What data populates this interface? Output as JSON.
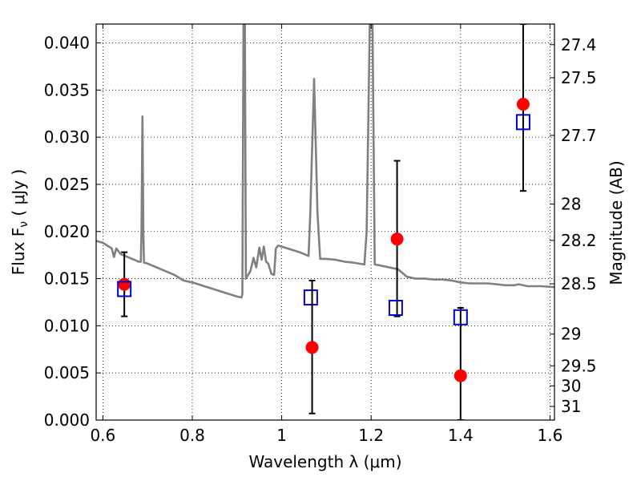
{
  "chart_data": {
    "type": "scatter",
    "xlabel": "Wavelength  λ (μm)",
    "ylabel": "Flux  F",
    "ylabel_sub": "ν",
    "ylabel_unit": "  ( μJy )",
    "y2label": "Magnitude (AB)",
    "xlim": [
      0.585,
      1.61
    ],
    "ylim": [
      0.0,
      0.042
    ],
    "grid": true,
    "x_ticks": [
      {
        "value": 0.6,
        "label": "0.6"
      },
      {
        "value": 0.8,
        "label": "0.8"
      },
      {
        "value": 1.0,
        "label": "1"
      },
      {
        "value": 1.2,
        "label": "1.2"
      },
      {
        "value": 1.4,
        "label": "1.4"
      },
      {
        "value": 1.6,
        "label": "1.6"
      }
    ],
    "y_ticks": [
      {
        "value": 0.0,
        "label": "0.000"
      },
      {
        "value": 0.005,
        "label": "0.005"
      },
      {
        "value": 0.01,
        "label": "0.010"
      },
      {
        "value": 0.015,
        "label": "0.015"
      },
      {
        "value": 0.02,
        "label": "0.020"
      },
      {
        "value": 0.025,
        "label": "0.025"
      },
      {
        "value": 0.03,
        "label": "0.030"
      },
      {
        "value": 0.035,
        "label": "0.035"
      },
      {
        "value": 0.04,
        "label": "0.040"
      }
    ],
    "y2_ticks": [
      {
        "value": 27.4,
        "label": "27.4"
      },
      {
        "value": 27.5,
        "label": "27.5"
      },
      {
        "value": 27.7,
        "label": "27.7"
      },
      {
        "value": 28.0,
        "label": "28"
      },
      {
        "value": 28.2,
        "label": "28.2"
      },
      {
        "value": 28.5,
        "label": "28.5"
      },
      {
        "value": 29.0,
        "label": "29"
      },
      {
        "value": 29.5,
        "label": "29.5"
      },
      {
        "value": 30.0,
        "label": "30"
      },
      {
        "value": 31.0,
        "label": "31"
      }
    ],
    "model_spectrum": {
      "color": "#808080",
      "points": [
        [
          0.585,
          0.019
        ],
        [
          0.6,
          0.0188
        ],
        [
          0.61,
          0.0185
        ],
        [
          0.62,
          0.0182
        ],
        [
          0.625,
          0.0173
        ],
        [
          0.63,
          0.0182
        ],
        [
          0.64,
          0.0176
        ],
        [
          0.65,
          0.0174
        ],
        [
          0.66,
          0.0172
        ],
        [
          0.67,
          0.017
        ],
        [
          0.68,
          0.0168
        ],
        [
          0.685,
          0.0168
        ],
        [
          0.6865,
          0.02
        ],
        [
          0.6885,
          0.0322
        ],
        [
          0.6905,
          0.02
        ],
        [
          0.692,
          0.0167
        ],
        [
          0.7,
          0.0166
        ],
        [
          0.72,
          0.0162
        ],
        [
          0.74,
          0.0158
        ],
        [
          0.76,
          0.0154
        ],
        [
          0.78,
          0.0148
        ],
        [
          0.8,
          0.0146
        ],
        [
          0.82,
          0.0143
        ],
        [
          0.84,
          0.014
        ],
        [
          0.86,
          0.0137
        ],
        [
          0.88,
          0.0134
        ],
        [
          0.9,
          0.0131
        ],
        [
          0.91,
          0.013
        ],
        [
          0.912,
          0.0134
        ],
        [
          0.9145,
          0.042
        ],
        [
          0.9175,
          0.042
        ],
        [
          0.92,
          0.015
        ],
        [
          0.93,
          0.0158
        ],
        [
          0.937,
          0.0172
        ],
        [
          0.943,
          0.0162
        ],
        [
          0.95,
          0.0183
        ],
        [
          0.955,
          0.017
        ],
        [
          0.96,
          0.0184
        ],
        [
          0.965,
          0.0168
        ],
        [
          0.97,
          0.0166
        ],
        [
          0.977,
          0.0155
        ],
        [
          0.983,
          0.0154
        ],
        [
          0.987,
          0.0182
        ],
        [
          0.992,
          0.0185
        ],
        [
          1.0,
          0.0184
        ],
        [
          1.02,
          0.0181
        ],
        [
          1.04,
          0.0178
        ],
        [
          1.06,
          0.0174
        ],
        [
          1.064,
          0.022
        ],
        [
          1.0725,
          0.0362
        ],
        [
          1.08,
          0.022
        ],
        [
          1.086,
          0.0171
        ],
        [
          1.1,
          0.0171
        ],
        [
          1.12,
          0.017
        ],
        [
          1.14,
          0.0168
        ],
        [
          1.16,
          0.0167
        ],
        [
          1.185,
          0.0165
        ],
        [
          1.19,
          0.02
        ],
        [
          1.197,
          0.042
        ],
        [
          1.203,
          0.042
        ],
        [
          1.208,
          0.0165
        ],
        [
          1.22,
          0.0164
        ],
        [
          1.24,
          0.0162
        ],
        [
          1.26,
          0.016
        ],
        [
          1.28,
          0.0152
        ],
        [
          1.3,
          0.015
        ],
        [
          1.32,
          0.015
        ],
        [
          1.34,
          0.0149
        ],
        [
          1.36,
          0.0149
        ],
        [
          1.38,
          0.0148
        ],
        [
          1.4,
          0.0146
        ],
        [
          1.42,
          0.0145
        ],
        [
          1.44,
          0.0145
        ],
        [
          1.46,
          0.0145
        ],
        [
          1.48,
          0.0144
        ],
        [
          1.5,
          0.0143
        ],
        [
          1.52,
          0.0143
        ],
        [
          1.53,
          0.0144
        ],
        [
          1.55,
          0.0142
        ],
        [
          1.58,
          0.0142
        ],
        [
          1.61,
          0.0141
        ]
      ]
    },
    "observed": {
      "color": "#ff0000",
      "points": [
        {
          "x": 0.648,
          "y": 0.0144,
          "err_lo": 0.011,
          "err_hi": 0.0178
        },
        {
          "x": 1.068,
          "y": 0.0077,
          "err_lo": 0.0007,
          "err_hi": 0.0148
        },
        {
          "x": 1.258,
          "y": 0.0192,
          "err_lo": 0.011,
          "err_hi": 0.0275
        },
        {
          "x": 1.4,
          "y": 0.0047,
          "err_lo": 0.0,
          "err_hi": 0.0119
        },
        {
          "x": 1.54,
          "y": 0.0335,
          "err_lo": 0.0243,
          "err_hi": 0.042
        }
      ]
    },
    "model_photometry": {
      "color": "#0000cc",
      "points": [
        {
          "x": 0.648,
          "y": 0.0139
        },
        {
          "x": 1.065,
          "y": 0.013
        },
        {
          "x": 1.255,
          "y": 0.0119
        },
        {
          "x": 1.4,
          "y": 0.0109
        },
        {
          "x": 1.54,
          "y": 0.0316
        }
      ]
    }
  }
}
